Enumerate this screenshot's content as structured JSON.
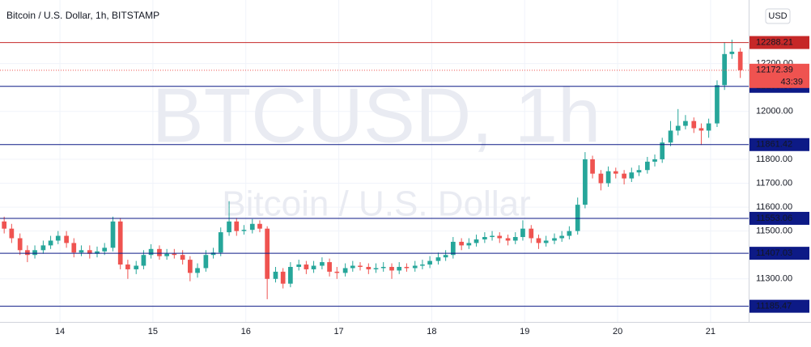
{
  "chart_data": {
    "type": "candlestick",
    "title": "Bitcoin / U.S. Dollar, 1h, BITSTAMP",
    "watermark": [
      "BTCUSD, 1h",
      "Bitcoin / U.S. Dollar"
    ],
    "currency": "USD",
    "countdown": "43:39",
    "up_color": "#26a69a",
    "down_color": "#ef5350",
    "grid": true,
    "xlim": [
      13.355,
      21.41
    ],
    "xticks": [
      14,
      15,
      16,
      17,
      18,
      19,
      20,
      21
    ],
    "ylim": [
      11120,
      12466
    ],
    "yticks": [
      {
        "value": 11300,
        "label": "11300.00"
      },
      {
        "value": 11500,
        "label": "11500.00"
      },
      {
        "value": 11600,
        "label": "11600.00"
      },
      {
        "value": 11700,
        "label": "11700.00"
      },
      {
        "value": 11800,
        "label": "11800.00"
      },
      {
        "value": 12000,
        "label": "12000.00"
      },
      {
        "value": 12200,
        "label": "12200.00"
      }
    ],
    "levels": [
      {
        "value": 12288.21,
        "color": "#c62828"
      },
      {
        "value": 12105.05,
        "color": "#0d1a86"
      },
      {
        "value": 11861.42,
        "color": "#0d1a86"
      },
      {
        "value": 11553.06,
        "color": "#0d1a86"
      },
      {
        "value": 11407.03,
        "color": "#0d1a86"
      },
      {
        "value": 11185.47,
        "color": "#0d1a86"
      }
    ],
    "x": [
      13.4,
      13.48,
      13.57,
      13.65,
      13.73,
      13.82,
      13.9,
      13.98,
      14.07,
      14.15,
      14.23,
      14.32,
      14.4,
      14.48,
      14.57,
      14.65,
      14.73,
      14.82,
      14.9,
      14.98,
      15.07,
      15.15,
      15.23,
      15.32,
      15.4,
      15.48,
      15.57,
      15.65,
      15.73,
      15.82,
      15.9,
      15.98,
      16.07,
      16.15,
      16.23,
      16.32,
      16.4,
      16.48,
      16.57,
      16.65,
      16.73,
      16.82,
      16.9,
      16.98,
      17.07,
      17.15,
      17.23,
      17.32,
      17.4,
      17.48,
      17.57,
      17.65,
      17.73,
      17.82,
      17.9,
      17.98,
      18.07,
      18.15,
      18.23,
      18.32,
      18.4,
      18.48,
      18.57,
      18.65,
      18.73,
      18.82,
      18.9,
      18.98,
      19.07,
      19.15,
      19.23,
      19.32,
      19.4,
      19.48,
      19.57,
      19.65,
      19.73,
      19.82,
      19.9,
      19.98,
      20.07,
      20.15,
      20.23,
      20.32,
      20.4,
      20.48,
      20.57,
      20.65,
      20.73,
      20.82,
      20.9,
      20.98,
      21.07,
      21.15,
      21.23,
      21.32
    ],
    "open": [
      11540,
      11510,
      11470,
      11420,
      11400,
      11420,
      11440,
      11460,
      11480,
      11450,
      11410,
      11420,
      11405,
      11415,
      11430,
      11540,
      11360,
      11340,
      11355,
      11400,
      11425,
      11395,
      11405,
      11400,
      11380,
      11325,
      11345,
      11400,
      11410,
      11495,
      11540,
      11500,
      11505,
      11530,
      11510,
      11300,
      11330,
      11280,
      11350,
      11360,
      11340,
      11355,
      11370,
      11330,
      11325,
      11345,
      11355,
      11350,
      11340,
      11345,
      11350,
      11335,
      11350,
      11345,
      11355,
      11360,
      11375,
      11390,
      11400,
      11455,
      11440,
      11450,
      11465,
      11475,
      11480,
      11470,
      11460,
      11475,
      11510,
      11470,
      11450,
      11460,
      11470,
      11480,
      11500,
      11610,
      11800,
      11740,
      11700,
      11750,
      11740,
      11720,
      11745,
      11755,
      11790,
      11800,
      11870,
      11920,
      11940,
      11960,
      11930,
      11920,
      11950,
      12110,
      12240,
      12250
    ],
    "high": [
      11560,
      11530,
      11490,
      11440,
      11440,
      11460,
      11480,
      11500,
      11500,
      11470,
      11440,
      11440,
      11435,
      11450,
      11560,
      11555,
      11380,
      11375,
      11420,
      11445,
      11440,
      11425,
      11425,
      11420,
      11395,
      11365,
      11420,
      11430,
      11515,
      11625,
      11555,
      11525,
      11550,
      11545,
      11520,
      11350,
      11345,
      11370,
      11380,
      11375,
      11375,
      11390,
      11385,
      11350,
      11365,
      11375,
      11370,
      11365,
      11365,
      11370,
      11365,
      11370,
      11365,
      11375,
      11380,
      11395,
      11410,
      11420,
      11475,
      11470,
      11470,
      11485,
      11495,
      11500,
      11495,
      11485,
      11495,
      11545,
      11525,
      11485,
      11480,
      11490,
      11500,
      11520,
      11640,
      11830,
      11815,
      11755,
      11770,
      11765,
      11755,
      11765,
      11775,
      11810,
      11820,
      11890,
      11960,
      12010,
      11985,
      11975,
      11950,
      11970,
      12130,
      12290,
      12300,
      12265
    ],
    "low": [
      11490,
      11450,
      11400,
      11370,
      11385,
      11405,
      11425,
      11445,
      11430,
      11390,
      11395,
      11385,
      11390,
      11400,
      11415,
      11340,
      11300,
      11320,
      11340,
      11385,
      11380,
      11380,
      11385,
      11360,
      11290,
      11305,
      11330,
      11385,
      11395,
      11480,
      11480,
      11485,
      11490,
      11495,
      11215,
      11285,
      11260,
      11265,
      11335,
      11320,
      11325,
      11340,
      11310,
      11300,
      11310,
      11330,
      11335,
      11320,
      11325,
      11330,
      11300,
      11320,
      11330,
      11330,
      11340,
      11345,
      11360,
      11375,
      11385,
      11420,
      11425,
      11435,
      11450,
      11460,
      11450,
      11440,
      11445,
      11460,
      11450,
      11425,
      11435,
      11445,
      11455,
      11465,
      11485,
      11595,
      11720,
      11670,
      11685,
      11720,
      11695,
      11705,
      11730,
      11740,
      11770,
      11785,
      11855,
      11900,
      11925,
      11910,
      11860,
      11890,
      11935,
      12090,
      12220,
      12140
    ],
    "close": [
      11510,
      11470,
      11420,
      11400,
      11420,
      11440,
      11460,
      11480,
      11450,
      11410,
      11420,
      11405,
      11415,
      11430,
      11540,
      11360,
      11340,
      11355,
      11400,
      11425,
      11395,
      11405,
      11400,
      11380,
      11325,
      11345,
      11400,
      11410,
      11495,
      11540,
      11500,
      11505,
      11530,
      11510,
      11300,
      11330,
      11280,
      11350,
      11360,
      11340,
      11355,
      11370,
      11330,
      11325,
      11345,
      11355,
      11350,
      11340,
      11345,
      11350,
      11335,
      11350,
      11345,
      11355,
      11360,
      11375,
      11390,
      11400,
      11455,
      11440,
      11450,
      11465,
      11475,
      11480,
      11470,
      11460,
      11475,
      11510,
      11470,
      11450,
      11460,
      11470,
      11480,
      11500,
      11610,
      11800,
      11740,
      11700,
      11750,
      11740,
      11720,
      11745,
      11755,
      11790,
      11800,
      11870,
      11920,
      11940,
      11960,
      11930,
      11920,
      11950,
      12110,
      12240,
      12250,
      12172.39
    ]
  }
}
